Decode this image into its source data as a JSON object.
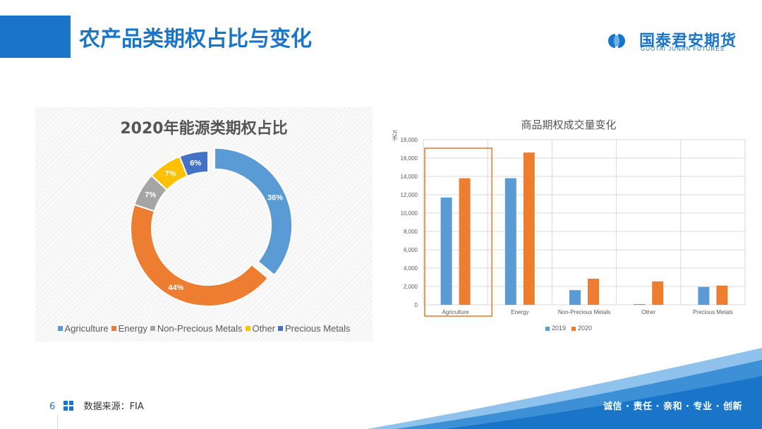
{
  "header": {
    "title": "农产品类期权占比与变化",
    "logo_name": "国泰君安期货",
    "logo_sub": "GUOTAI JUNAN FUTURES"
  },
  "left_chart": {
    "title": "2020年能源类期权占比"
  },
  "right_chart": {
    "title": "商品期权成交量变化",
    "y_unit": "万手"
  },
  "footer": {
    "page": "6",
    "source": "数据来源：FIA",
    "slogan": "诚信 · 责任 · 亲和 · 专业 · 创新"
  },
  "colors": {
    "brand": "#1a75c8",
    "agriculture": "#5b9bd5",
    "energy": "#ed7d31",
    "non_precious": "#a5a5a5",
    "other": "#ffc000",
    "precious": "#4472c4",
    "highlight_box": "#ed7d31"
  },
  "icons": {
    "footer_icon": "grid-icon",
    "logo_icon": "gtja-logo-icon"
  },
  "chart_data": [
    {
      "type": "pie",
      "title": "2020年能源类期权占比",
      "donut": true,
      "legend": "bottom",
      "labels": [
        "Agriculture",
        "Energy",
        "Non-Precious Metals",
        "Other",
        "Precious Metals"
      ],
      "values": [
        36,
        44,
        7,
        7,
        6
      ],
      "value_labels": [
        "36%",
        "44%",
        "7%",
        "7%",
        "6%"
      ],
      "colors": [
        "#5b9bd5",
        "#ed7d31",
        "#a5a5a5",
        "#ffc000",
        "#4472c4"
      ],
      "exploded": "Agriculture"
    },
    {
      "type": "bar",
      "title": "商品期权成交量变化",
      "ylabel": "万手",
      "categories": [
        "Agriculture",
        "Energy",
        "Non-Precious Metals",
        "Other",
        "Precious Metals"
      ],
      "series": [
        {
          "name": "2019",
          "values": [
            11700,
            13800,
            1600,
            80,
            1950
          ],
          "color": "#5b9bd5"
        },
        {
          "name": "2020",
          "values": [
            13800,
            16600,
            2850,
            2550,
            2100
          ],
          "color": "#ed7d31"
        }
      ],
      "ylim": [
        0,
        18000
      ],
      "yticks": [
        0,
        2000,
        4000,
        6000,
        8000,
        10000,
        12000,
        14000,
        16000,
        18000
      ],
      "ytick_labels": [
        "0",
        "2,000",
        "4,000",
        "6,000",
        "8,000",
        "10,000",
        "12,000",
        "14,000",
        "16,000",
        "18,000"
      ],
      "grid": true,
      "legend": "bottom",
      "highlighted_category": "Agriculture"
    }
  ]
}
